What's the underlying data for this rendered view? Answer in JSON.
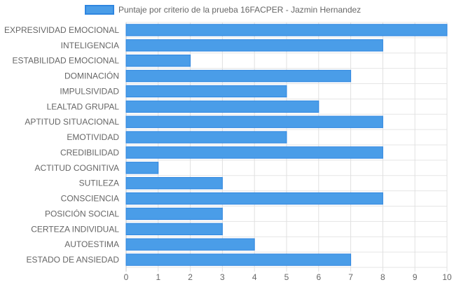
{
  "chart_data": {
    "type": "bar",
    "orientation": "horizontal",
    "categories": [
      "EXPRESIVIDAD EMOCIONAL",
      "INTELIGENCIA",
      "ESTABILIDAD EMOCIONAL",
      "DOMINACIÓN",
      "IMPULSIVIDAD",
      "LEALTAD GRUPAL",
      "APTITUD SITUACIONAL",
      "EMOTIVIDAD",
      "CREDIBILIDAD",
      "ACTITUD COGNITIVA",
      "SUTILEZA",
      "CONSCIENCIA",
      "POSICIÓN SOCIAL",
      "CERTEZA INDIVIDUAL",
      "AUTOESTIMA",
      "ESTADO DE ANSIEDAD"
    ],
    "series": [
      {
        "name": "Puntaje por criterio de la prueba 16FACPER - Jazmin Hernandez",
        "values": [
          10,
          8,
          2,
          7,
          5,
          6,
          8,
          5,
          8,
          1,
          3,
          8,
          3,
          3,
          4,
          7
        ],
        "color": "#4a9de8",
        "border_color": "#2f86e0"
      }
    ],
    "xlim": [
      0,
      10
    ],
    "x_ticks": [
      "0",
      "1",
      "2",
      "3",
      "4",
      "5",
      "6",
      "7",
      "8",
      "9",
      "10"
    ],
    "grid": true,
    "legend_position": "top"
  }
}
